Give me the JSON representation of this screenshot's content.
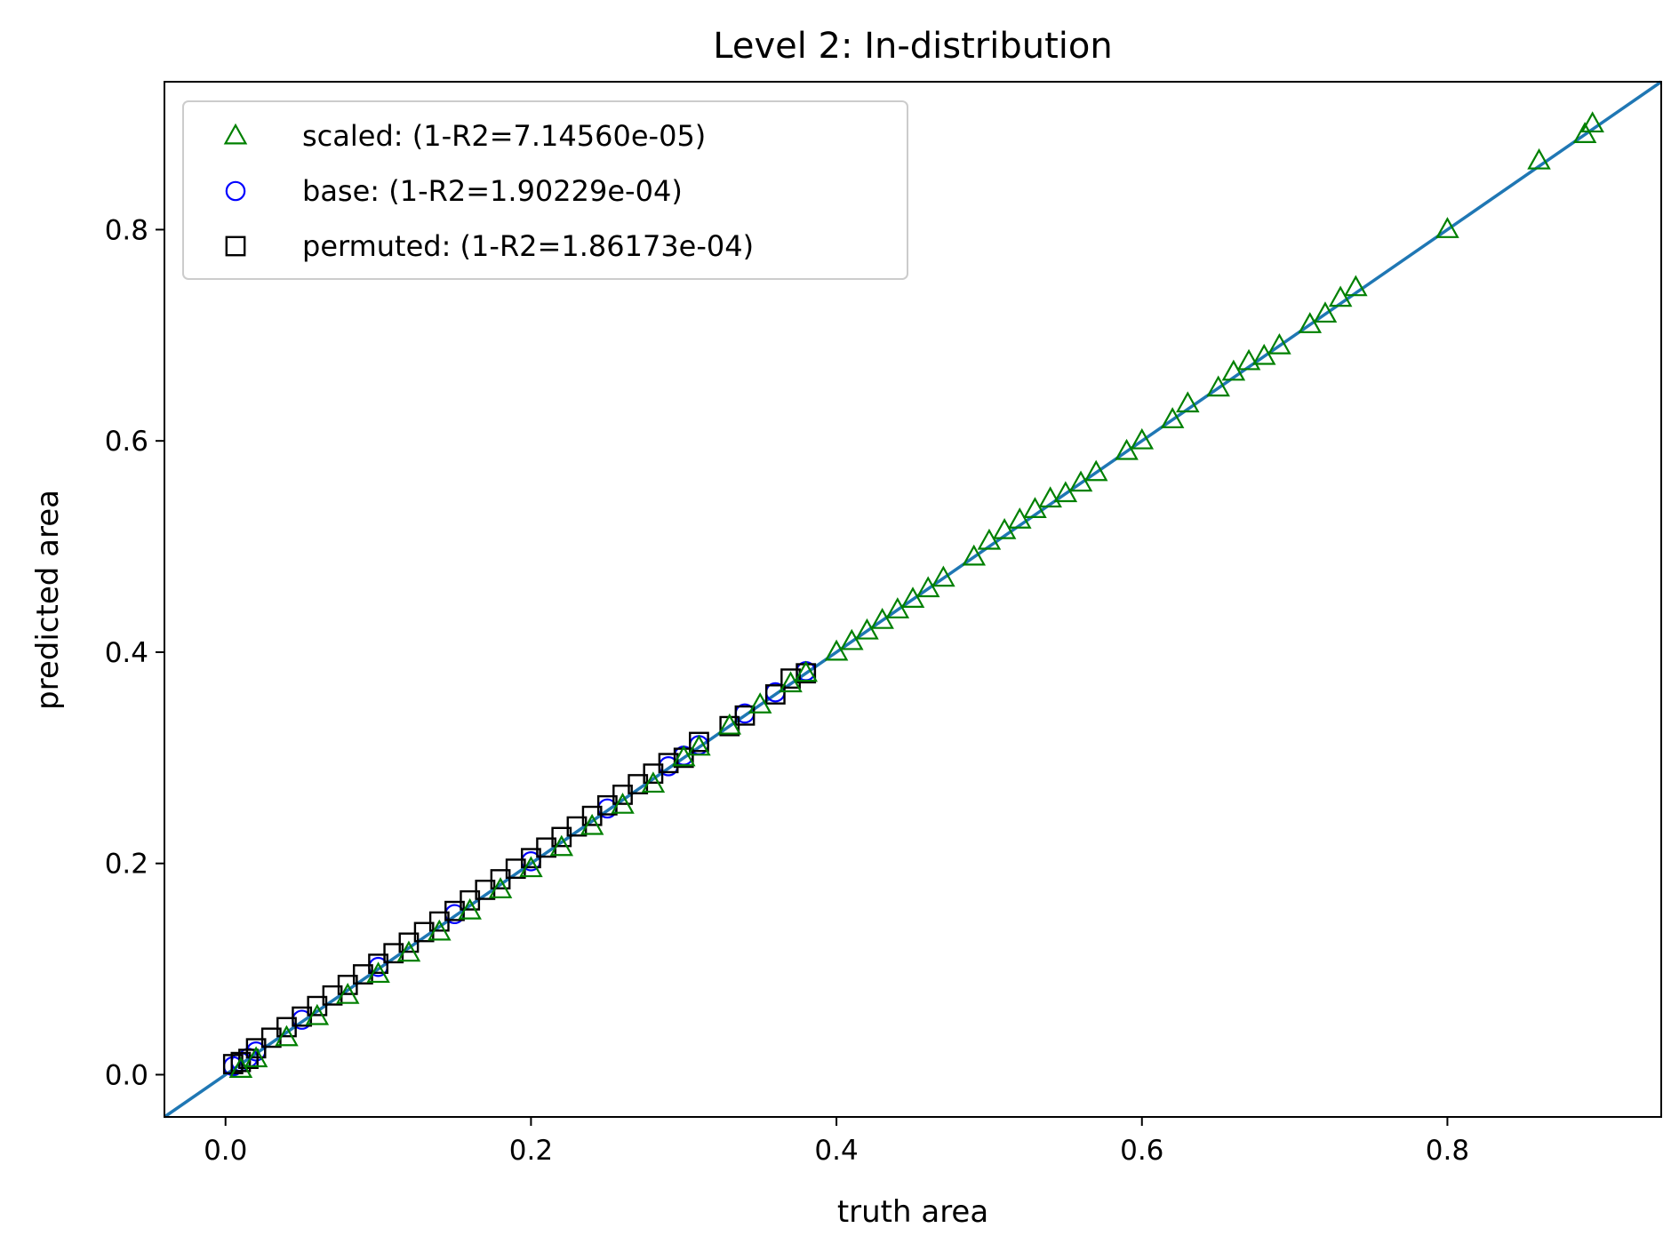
{
  "chart_data": {
    "type": "scatter",
    "title": "Level 2: In-distribution",
    "xlabel": "truth area",
    "ylabel": "predicted area",
    "xlim": [
      -0.04,
      0.94
    ],
    "ylim": [
      -0.04,
      0.94
    ],
    "xticks": [
      0.0,
      0.2,
      0.4,
      0.6,
      0.8
    ],
    "yticks": [
      0.0,
      0.2,
      0.4,
      0.6,
      0.8
    ],
    "xtick_labels": [
      "0.0",
      "0.2",
      "0.4",
      "0.6",
      "0.8"
    ],
    "ytick_labels": [
      "0.0",
      "0.2",
      "0.4",
      "0.6",
      "0.8"
    ],
    "grid": false,
    "legend_position": "top-left",
    "reference_line": {
      "from": [
        -0.04,
        -0.04
      ],
      "to": [
        0.94,
        0.94
      ],
      "color": "#1f77b4"
    },
    "series": [
      {
        "name": "scaled: (1-R2=7.14560e-05)",
        "marker": "triangle",
        "color": "#008000",
        "x": [
          0.01,
          0.02,
          0.04,
          0.06,
          0.08,
          0.1,
          0.12,
          0.14,
          0.16,
          0.18,
          0.2,
          0.22,
          0.24,
          0.26,
          0.28,
          0.3,
          0.31,
          0.33,
          0.35,
          0.37,
          0.38,
          0.4,
          0.41,
          0.42,
          0.43,
          0.44,
          0.45,
          0.46,
          0.47,
          0.49,
          0.5,
          0.51,
          0.52,
          0.53,
          0.54,
          0.55,
          0.56,
          0.57,
          0.59,
          0.6,
          0.62,
          0.63,
          0.65,
          0.66,
          0.67,
          0.68,
          0.69,
          0.71,
          0.72,
          0.73,
          0.74,
          0.8,
          0.86,
          0.89,
          0.895
        ],
        "y": [
          0.005,
          0.015,
          0.035,
          0.055,
          0.075,
          0.095,
          0.115,
          0.135,
          0.155,
          0.175,
          0.195,
          0.215,
          0.235,
          0.255,
          0.275,
          0.3,
          0.31,
          0.33,
          0.35,
          0.37,
          0.38,
          0.4,
          0.41,
          0.42,
          0.43,
          0.44,
          0.45,
          0.46,
          0.47,
          0.49,
          0.505,
          0.515,
          0.525,
          0.535,
          0.545,
          0.55,
          0.56,
          0.57,
          0.59,
          0.6,
          0.62,
          0.635,
          0.65,
          0.665,
          0.675,
          0.68,
          0.69,
          0.71,
          0.72,
          0.735,
          0.745,
          0.8,
          0.865,
          0.89,
          0.9
        ]
      },
      {
        "name": "base: (1-R2=1.90229e-04)",
        "marker": "circle",
        "color": "#0000ff",
        "x": [
          0.005,
          0.01,
          0.015,
          0.02,
          0.05,
          0.1,
          0.15,
          0.2,
          0.25,
          0.29,
          0.3,
          0.31,
          0.34,
          0.36,
          0.38
        ],
        "y": [
          0.008,
          0.012,
          0.016,
          0.022,
          0.052,
          0.102,
          0.152,
          0.202,
          0.252,
          0.292,
          0.302,
          0.312,
          0.342,
          0.362,
          0.382
        ]
      },
      {
        "name": "permuted: (1-R2=1.86173e-04)",
        "marker": "square",
        "color": "#000000",
        "x": [
          0.005,
          0.01,
          0.015,
          0.02,
          0.03,
          0.04,
          0.05,
          0.06,
          0.07,
          0.08,
          0.09,
          0.1,
          0.11,
          0.12,
          0.13,
          0.14,
          0.15,
          0.16,
          0.17,
          0.18,
          0.19,
          0.2,
          0.21,
          0.22,
          0.23,
          0.24,
          0.25,
          0.26,
          0.27,
          0.28,
          0.29,
          0.3,
          0.31,
          0.33,
          0.34,
          0.36,
          0.37,
          0.38
        ],
        "y": [
          0.01,
          0.012,
          0.015,
          0.025,
          0.035,
          0.045,
          0.055,
          0.065,
          0.075,
          0.085,
          0.095,
          0.105,
          0.115,
          0.125,
          0.135,
          0.145,
          0.155,
          0.165,
          0.175,
          0.185,
          0.195,
          0.205,
          0.215,
          0.225,
          0.235,
          0.245,
          0.255,
          0.265,
          0.275,
          0.285,
          0.295,
          0.3,
          0.315,
          0.33,
          0.34,
          0.36,
          0.375,
          0.38
        ]
      }
    ]
  }
}
